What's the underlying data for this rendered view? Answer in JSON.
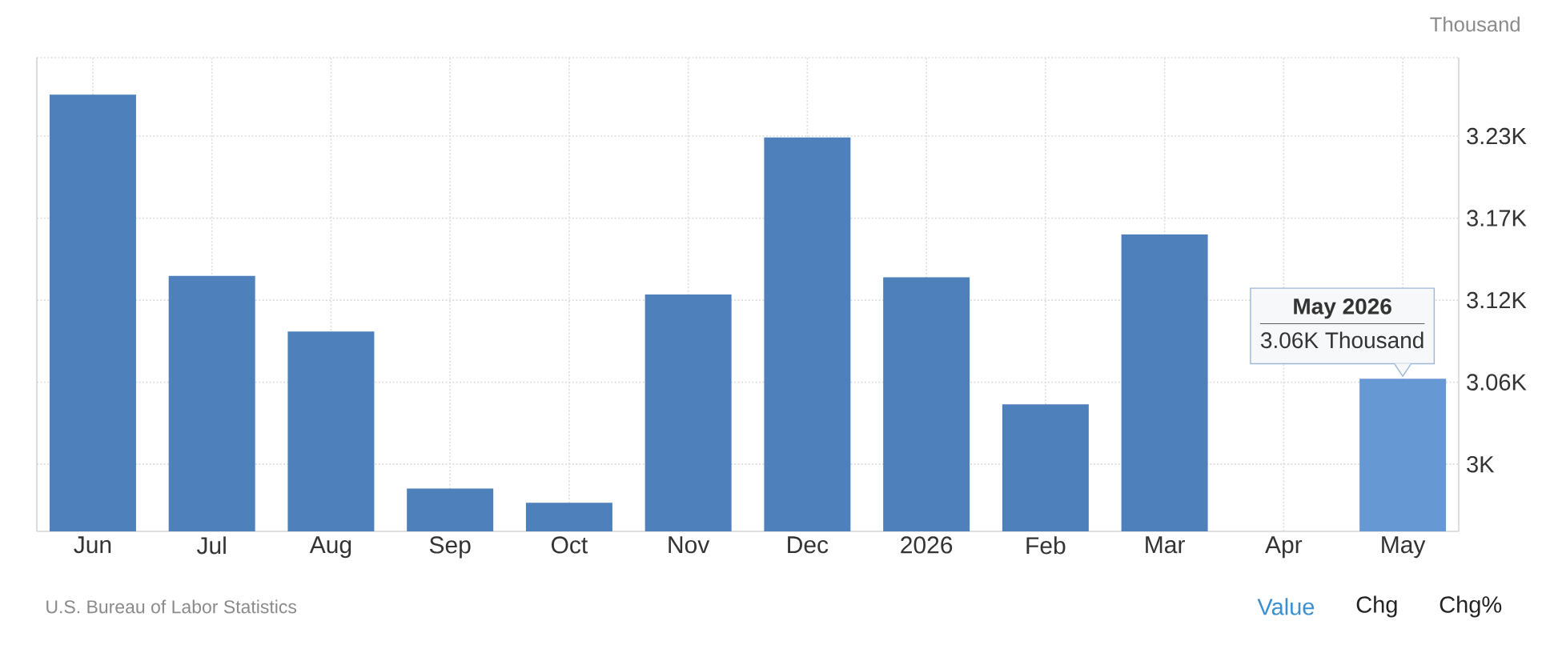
{
  "chart_data": {
    "type": "bar",
    "categories": [
      "Jun",
      "Jul",
      "Aug",
      "Sep",
      "Oct",
      "Nov",
      "Dec",
      "2026",
      "Feb",
      "Mar",
      "Apr",
      "May"
    ],
    "values": [
      3259,
      3132,
      3093,
      2983,
      2973,
      3119,
      3229,
      3131,
      3042,
      3161,
      null,
      3060
    ],
    "colors": [
      "#4e81bc",
      "#4e81bc",
      "#4e81bc",
      "#4e81bc",
      "#4e81bc",
      "#4e81bc",
      "#4e81bc",
      "#4e81bc",
      "#4e81bc",
      "#4e81bc",
      "#4e81bc",
      "#6699d3"
    ],
    "ylabel": "Thousand",
    "ylim": [
      2953,
      3285
    ],
    "yticks": [
      {
        "value": 3000,
        "label": "3K"
      },
      {
        "value": 3057.5,
        "label": "3.06K"
      },
      {
        "value": 3115,
        "label": "3.12K"
      },
      {
        "value": 3172.5,
        "label": "3.17K"
      },
      {
        "value": 3230,
        "label": "3.23K"
      }
    ],
    "grid": true,
    "annotations": [
      "U.S. Bureau of Labor Statistics",
      "Value",
      "Chg",
      "Chg%",
      {
        "text": "May 2026",
        "x": "May",
        "y": 3060
      },
      {
        "text": "3.06K Thousand",
        "x": "May",
        "y": 3060
      }
    ]
  }
}
